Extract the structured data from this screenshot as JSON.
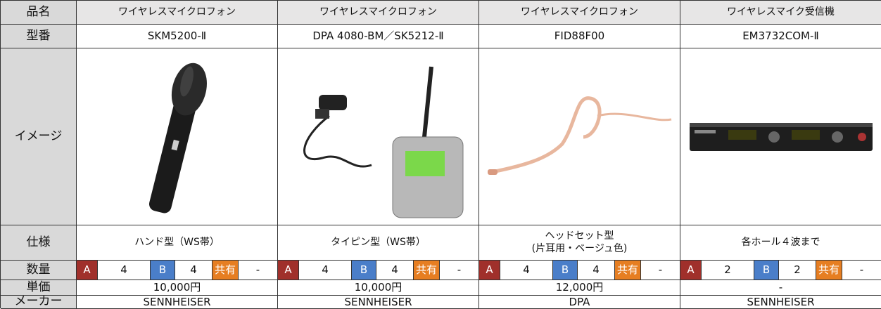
{
  "table": {
    "row_labels": [
      "品名",
      "型番",
      "イメージ",
      "仕様",
      "数量",
      "単価",
      "メーカー"
    ],
    "products": [
      {
        "name": "ワイヤレスマイクロフォン",
        "model": "SKM5200-Ⅱ",
        "spec": [
          "ハンド型（WS帯）"
        ],
        "quantity": [
          {
            "label": "A",
            "count": 4
          },
          {
            "label": "B",
            "count": 4
          },
          {
            "label": "共有",
            "count": "-"
          }
        ],
        "price": "10,000円",
        "maker": "SENNHEISER"
      },
      {
        "name": "ワイヤレスマイクロフォン",
        "model": "DPA 4080-BM／SK5212-Ⅱ",
        "spec": [
          "タイピン型（WS帯）"
        ],
        "quantity": [
          {
            "label": "A",
            "count": 4
          },
          {
            "label": "B",
            "count": 4
          },
          {
            "label": "共有",
            "count": "-"
          }
        ],
        "price": "10,000円",
        "maker": "SENNHEISER"
      },
      {
        "name": "ワイヤレスマイクロフォン",
        "model": "FID88F00",
        "spec": [
          "ヘッドセット型",
          "(片耳用・ベージュ色)"
        ],
        "quantity": [
          {
            "label": "A",
            "count": 4
          },
          {
            "label": "B",
            "count": 4
          },
          {
            "label": "共有",
            "count": "-"
          }
        ],
        "price": "12,000円",
        "maker": "DPA"
      },
      {
        "name": "ワイヤレスマイク受信機",
        "model": "EM3732COM-Ⅱ",
        "spec": [
          "各ホール４波まで"
        ],
        "quantity": [
          {
            "label": "A",
            "count": 2
          },
          {
            "label": "B",
            "count": 2
          },
          {
            "label": "共有",
            "count": "-"
          }
        ],
        "price": "-",
        "maker": "SENNHEISER"
      }
    ]
  }
}
